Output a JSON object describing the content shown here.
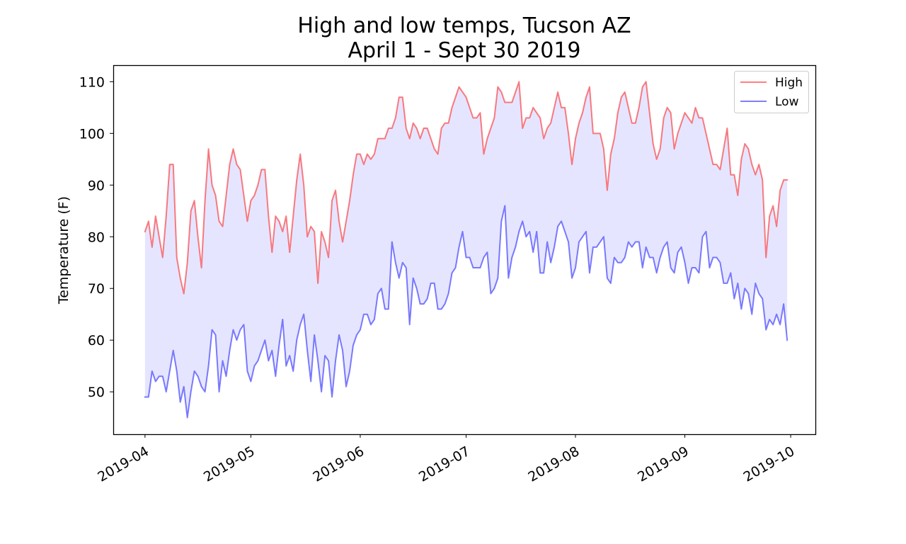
{
  "chart_data": {
    "type": "line",
    "title_line1": "High and low temps, Tucson AZ",
    "title_line2": "April 1 - Sept 30 2019",
    "ylabel": "Temperature (F)",
    "xlabel": "",
    "xlim": [
      "2019-03-23",
      "2019-10-08"
    ],
    "ylim": [
      41.8,
      113.2
    ],
    "y_ticks": [
      50,
      60,
      70,
      80,
      90,
      100,
      110
    ],
    "x_ticks": [
      "2019-04",
      "2019-05",
      "2019-06",
      "2019-07",
      "2019-08",
      "2019-09",
      "2019-10"
    ],
    "x_tick_dates": [
      "2019-04-01",
      "2019-05-01",
      "2019-06-01",
      "2019-07-01",
      "2019-08-01",
      "2019-09-01",
      "2019-10-01"
    ],
    "grid": false,
    "legend_position": "upper-right",
    "fill_between": {
      "color": "#0000ff",
      "alpha": 0.1
    },
    "start_date": "2019-04-01",
    "series": [
      {
        "name": "High",
        "color": "#ff0000",
        "alpha": 0.5,
        "values": [
          81,
          83,
          78,
          84,
          80,
          76,
          84,
          94,
          94,
          76,
          72,
          69,
          75,
          85,
          87,
          80,
          74,
          87,
          97,
          90,
          88,
          83,
          82,
          88,
          94,
          97,
          94,
          93,
          88,
          83,
          87,
          88,
          90,
          93,
          93,
          84,
          77,
          84,
          83,
          81,
          84,
          77,
          84,
          91,
          96,
          90,
          80,
          82,
          81,
          71,
          81,
          79,
          76,
          87,
          89,
          83,
          79,
          83,
          87,
          92,
          96,
          96,
          94,
          96,
          95,
          96,
          99,
          99,
          99,
          101,
          101,
          103,
          107,
          107,
          101,
          99,
          102,
          101,
          99,
          101,
          101,
          99,
          97,
          96,
          101,
          102,
          102,
          105,
          107,
          109,
          108,
          107,
          105,
          103,
          103,
          104,
          96,
          99,
          101,
          103,
          109,
          108,
          106,
          106,
          106,
          108,
          110,
          101,
          103,
          103,
          105,
          104,
          103,
          99,
          101,
          102,
          105,
          108,
          105,
          105,
          100,
          94,
          99,
          102,
          104,
          107,
          109,
          100,
          100,
          100,
          97,
          89,
          96,
          99,
          104,
          107,
          108,
          105,
          102,
          102,
          105,
          109,
          110,
          104,
          98,
          95,
          97,
          103,
          105,
          104,
          97,
          100,
          102,
          104,
          103,
          102,
          105,
          103,
          103,
          100,
          97,
          94,
          94,
          93,
          97,
          101,
          92,
          92,
          88,
          95,
          98,
          97,
          94,
          92,
          94,
          91,
          76,
          84,
          86,
          82,
          89,
          91,
          91
        ]
      },
      {
        "name": "Low",
        "color": "#0000ff",
        "alpha": 0.5,
        "values": [
          49,
          49,
          54,
          52,
          53,
          53,
          50,
          54,
          58,
          54,
          48,
          51,
          45,
          50,
          54,
          53,
          51,
          50,
          55,
          62,
          61,
          50,
          56,
          53,
          58,
          62,
          60,
          62,
          63,
          54,
          52,
          55,
          56,
          58,
          60,
          56,
          58,
          53,
          59,
          64,
          55,
          57,
          54,
          60,
          63,
          65,
          58,
          52,
          61,
          56,
          50,
          57,
          56,
          49,
          56,
          61,
          58,
          51,
          54,
          59,
          61,
          62,
          65,
          65,
          63,
          64,
          69,
          70,
          66,
          66,
          79,
          75,
          72,
          75,
          74,
          63,
          72,
          70,
          67,
          67,
          68,
          71,
          71,
          66,
          66,
          67,
          69,
          73,
          74,
          78,
          81,
          76,
          76,
          74,
          74,
          74,
          76,
          77,
          69,
          70,
          72,
          83,
          86,
          72,
          76,
          78,
          81,
          83,
          80,
          81,
          77,
          81,
          73,
          73,
          79,
          75,
          78,
          82,
          83,
          81,
          79,
          72,
          74,
          79,
          80,
          81,
          73,
          78,
          78,
          79,
          80,
          72,
          71,
          76,
          75,
          75,
          76,
          79,
          78,
          79,
          79,
          74,
          78,
          76,
          76,
          73,
          76,
          78,
          79,
          74,
          73,
          77,
          78,
          75,
          71,
          74,
          74,
          73,
          80,
          81,
          74,
          76,
          76,
          75,
          71,
          71,
          73,
          68,
          71,
          66,
          70,
          69,
          65,
          71,
          69,
          68,
          62,
          64,
          63,
          65,
          63,
          67,
          60
        ]
      }
    ]
  }
}
